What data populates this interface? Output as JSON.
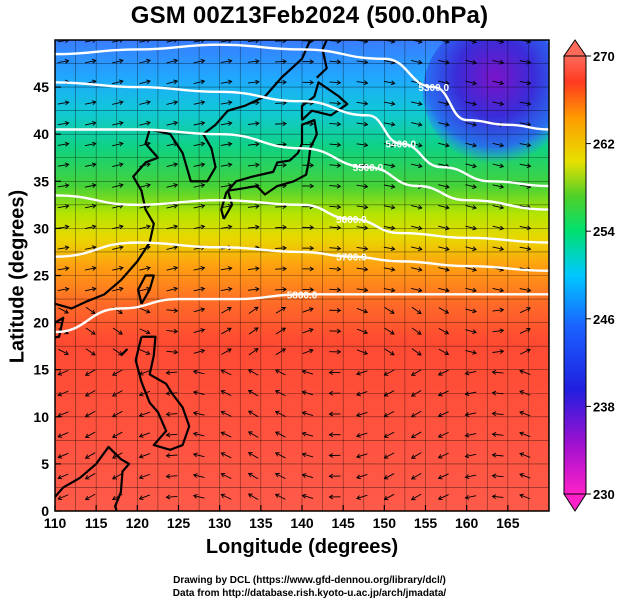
{
  "title": "GSM 00Z13Feb2024 (500.0hPa)",
  "axes": {
    "x_label": "Longitude (degrees)",
    "y_label": "Latitude  (degrees)",
    "x_ticks": [
      "110",
      "115",
      "120",
      "125",
      "130",
      "135",
      "140",
      "145",
      "150",
      "155",
      "160",
      "165"
    ],
    "y_ticks": [
      "0",
      "5",
      "10",
      "15",
      "20",
      "25",
      "30",
      "35",
      "40",
      "45"
    ],
    "x_range": [
      110,
      170
    ],
    "y_range": [
      0,
      50
    ]
  },
  "colorbar": {
    "ticks": [
      "230",
      "238",
      "246",
      "254",
      "262",
      "270"
    ],
    "range": [
      230,
      270
    ],
    "colors": [
      "#ff00cc",
      "#8a00d6",
      "#1a2bff",
      "#00b8ff",
      "#00e0a0",
      "#44d630",
      "#e8e000",
      "#ff9a00",
      "#ff4422",
      "#ff6a5a"
    ]
  },
  "contours": [
    {
      "label": "5300.0",
      "lat_at_lon": [
        [
          110,
          48.5
        ],
        [
          120,
          49
        ],
        [
          130,
          49.5
        ],
        [
          140,
          49
        ],
        [
          150,
          48
        ],
        [
          156,
          45
        ],
        [
          160,
          41.5
        ],
        [
          165,
          41
        ],
        [
          170,
          40.5
        ]
      ]
    },
    {
      "label": "5400.0",
      "lat_at_lon": [
        [
          110,
          45.5
        ],
        [
          120,
          45
        ],
        [
          130,
          44.5
        ],
        [
          140,
          43.5
        ],
        [
          148,
          42
        ],
        [
          152,
          39
        ],
        [
          157,
          36.5
        ],
        [
          163,
          35
        ],
        [
          170,
          34.5
        ]
      ]
    },
    {
      "label": "5500.0",
      "lat_at_lon": [
        [
          110,
          40.5
        ],
        [
          120,
          40.5
        ],
        [
          130,
          40
        ],
        [
          140,
          38.5
        ],
        [
          148,
          36.5
        ],
        [
          154,
          34.5
        ],
        [
          160,
          33
        ],
        [
          170,
          32
        ]
      ]
    },
    {
      "label": "5600.0",
      "lat_at_lon": [
        [
          110,
          33.5
        ],
        [
          120,
          32.5
        ],
        [
          130,
          33
        ],
        [
          140,
          32.5
        ],
        [
          146,
          31
        ],
        [
          152,
          29.5
        ],
        [
          160,
          29
        ],
        [
          170,
          28.5
        ]
      ]
    },
    {
      "label": "5700.0",
      "lat_at_lon": [
        [
          110,
          27
        ],
        [
          120,
          28.5
        ],
        [
          130,
          28
        ],
        [
          140,
          27.5
        ],
        [
          146,
          27
        ],
        [
          152,
          26.5
        ],
        [
          160,
          26
        ],
        [
          170,
          25.5
        ]
      ]
    },
    {
      "label": "5800.0",
      "lat_at_lon": [
        [
          110,
          19
        ],
        [
          118,
          21.5
        ],
        [
          125,
          22.5
        ],
        [
          132,
          22.5
        ],
        [
          140,
          23
        ],
        [
          150,
          23
        ],
        [
          160,
          23
        ],
        [
          170,
          23
        ]
      ]
    }
  ],
  "credits": {
    "line1": "Drawing by DCL (https://www.gfd-dennou.org/library/dcl/)",
    "line2": "Data from http://database.rish.kyoto-u.ac.jp/arch/jmadata/"
  }
}
